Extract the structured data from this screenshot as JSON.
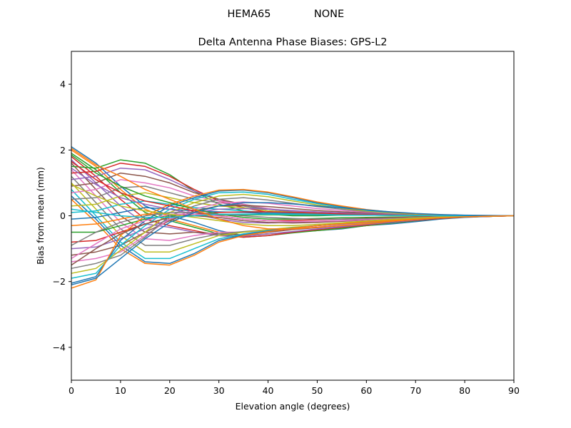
{
  "suptitle_left": "HEMA65",
  "suptitle_right": "NONE",
  "chart_data": {
    "type": "line",
    "title": "Delta Antenna Phase Biases: GPS-L2",
    "xlabel": "Elevation angle (degrees)",
    "ylabel": "Bias from mean (mm)",
    "xlim": [
      0,
      90
    ],
    "ylim": [
      -5,
      5
    ],
    "xticks": [
      0,
      10,
      20,
      30,
      40,
      50,
      60,
      70,
      80,
      90
    ],
    "yticks": [
      -4,
      -2,
      0,
      2,
      4
    ],
    "x": [
      0,
      5,
      10,
      15,
      20,
      25,
      30,
      35,
      40,
      45,
      50,
      55,
      60,
      65,
      70,
      75,
      80,
      85,
      90
    ],
    "grid": false,
    "legend": "none",
    "colors": [
      "#1f77b4",
      "#ff7f0e",
      "#2ca02c",
      "#d62728",
      "#9467bd",
      "#8c564b",
      "#e377c2",
      "#7f7f7f",
      "#bcbd22",
      "#17becf"
    ],
    "series": [
      {
        "values": [
          2.1,
          1.6,
          0.9,
          0.3,
          0.0,
          -0.2,
          -0.45,
          -0.6,
          -0.55,
          -0.5,
          -0.45,
          -0.4,
          -0.3,
          -0.25,
          -0.18,
          -0.1,
          -0.05,
          -0.02,
          0.0
        ]
      },
      {
        "values": [
          2.0,
          1.5,
          0.8,
          0.2,
          -0.1,
          -0.3,
          -0.5,
          -0.6,
          -0.55,
          -0.5,
          -0.45,
          -0.38,
          -0.3,
          -0.22,
          -0.15,
          -0.08,
          -0.04,
          -0.02,
          0.0
        ]
      },
      {
        "values": [
          1.9,
          1.4,
          0.7,
          0.1,
          -0.15,
          -0.35,
          -0.55,
          -0.65,
          -0.6,
          -0.52,
          -0.45,
          -0.38,
          -0.3,
          -0.22,
          -0.15,
          -0.08,
          -0.04,
          -0.02,
          0.0
        ]
      },
      {
        "values": [
          1.8,
          1.2,
          0.5,
          -0.1,
          -0.3,
          -0.45,
          -0.6,
          -0.65,
          -0.6,
          -0.5,
          -0.42,
          -0.35,
          -0.28,
          -0.2,
          -0.14,
          -0.08,
          -0.04,
          -0.02,
          0.0
        ]
      },
      {
        "values": [
          1.7,
          1.0,
          0.3,
          -0.25,
          -0.35,
          -0.5,
          -0.6,
          -0.62,
          -0.55,
          -0.48,
          -0.4,
          -0.33,
          -0.26,
          -0.2,
          -0.13,
          -0.07,
          -0.04,
          -0.02,
          0.0
        ]
      },
      {
        "values": [
          1.6,
          0.8,
          0.0,
          -0.5,
          -0.55,
          -0.5,
          -0.55,
          -0.58,
          -0.5,
          -0.42,
          -0.36,
          -0.3,
          -0.24,
          -0.18,
          -0.12,
          -0.07,
          -0.04,
          -0.02,
          0.0
        ]
      },
      {
        "values": [
          1.4,
          0.6,
          -0.2,
          -0.7,
          -0.75,
          -0.6,
          -0.5,
          -0.5,
          -0.45,
          -0.4,
          -0.34,
          -0.28,
          -0.22,
          -0.17,
          -0.11,
          -0.06,
          -0.03,
          -0.01,
          0.0
        ]
      },
      {
        "values": [
          1.2,
          0.4,
          -0.4,
          -0.9,
          -0.9,
          -0.7,
          -0.55,
          -0.48,
          -0.42,
          -0.36,
          -0.3,
          -0.25,
          -0.2,
          -0.15,
          -0.1,
          -0.06,
          -0.03,
          -0.01,
          0.0
        ]
      },
      {
        "values": [
          1.0,
          0.2,
          -0.6,
          -1.1,
          -1.1,
          -0.85,
          -0.6,
          -0.5,
          -0.42,
          -0.35,
          -0.3,
          -0.24,
          -0.19,
          -0.14,
          -0.1,
          -0.06,
          -0.03,
          -0.01,
          0.0
        ]
      },
      {
        "values": [
          0.8,
          0.0,
          -0.8,
          -1.3,
          -1.3,
          -1.0,
          -0.7,
          -0.55,
          -0.45,
          -0.37,
          -0.3,
          -0.24,
          -0.19,
          -0.14,
          -0.1,
          -0.06,
          -0.03,
          -0.01,
          0.0
        ]
      },
      {
        "values": [
          0.6,
          -0.1,
          -0.9,
          -1.4,
          -1.45,
          -1.15,
          -0.75,
          -0.58,
          -0.46,
          -0.38,
          -0.3,
          -0.24,
          -0.19,
          -0.14,
          -0.1,
          -0.06,
          -0.03,
          -0.01,
          0.0
        ]
      },
      {
        "values": [
          0.5,
          -0.2,
          -1.0,
          -1.45,
          -1.5,
          -1.2,
          -0.8,
          -0.6,
          -0.48,
          -0.38,
          -0.3,
          -0.24,
          -0.19,
          -0.14,
          -0.1,
          -0.06,
          -0.03,
          -0.01,
          0.0
        ]
      },
      {
        "values": [
          1.5,
          1.45,
          1.7,
          1.6,
          1.25,
          0.75,
          0.35,
          0.15,
          0.05,
          0.0,
          0.0,
          0.02,
          0.03,
          0.03,
          0.02,
          0.01,
          0.01,
          0.0,
          0.0
        ]
      },
      {
        "values": [
          1.3,
          1.35,
          1.6,
          1.5,
          1.2,
          0.8,
          0.45,
          0.25,
          0.1,
          0.05,
          0.03,
          0.03,
          0.03,
          0.03,
          0.02,
          0.01,
          0.01,
          0.0,
          0.0
        ]
      },
      {
        "values": [
          1.1,
          1.2,
          1.45,
          1.4,
          1.1,
          0.75,
          0.5,
          0.3,
          0.15,
          0.08,
          0.05,
          0.04,
          0.03,
          0.03,
          0.02,
          0.01,
          0.01,
          0.0,
          0.0
        ]
      },
      {
        "values": [
          0.9,
          1.0,
          1.3,
          1.2,
          1.0,
          0.7,
          0.5,
          0.35,
          0.2,
          0.12,
          0.08,
          0.05,
          0.04,
          0.03,
          0.02,
          0.01,
          0.01,
          0.0,
          0.0
        ]
      },
      {
        "values": [
          0.7,
          0.8,
          1.1,
          1.0,
          0.85,
          0.6,
          0.45,
          0.35,
          0.22,
          0.14,
          0.09,
          0.06,
          0.04,
          0.03,
          0.02,
          0.01,
          0.01,
          0.0,
          0.0
        ]
      },
      {
        "values": [
          0.5,
          0.55,
          0.85,
          0.9,
          0.7,
          0.5,
          0.4,
          0.3,
          0.2,
          0.12,
          0.08,
          0.05,
          0.04,
          0.03,
          0.02,
          0.01,
          0.01,
          0.0,
          0.0
        ]
      },
      {
        "values": [
          0.3,
          0.35,
          0.6,
          0.7,
          0.55,
          0.4,
          0.3,
          0.25,
          0.15,
          0.1,
          0.07,
          0.05,
          0.04,
          0.03,
          0.02,
          0.01,
          0.01,
          0.0,
          0.0
        ]
      },
      {
        "values": [
          0.1,
          0.15,
          0.35,
          0.45,
          0.35,
          0.25,
          0.2,
          0.15,
          0.1,
          0.07,
          0.05,
          0.04,
          0.03,
          0.02,
          0.02,
          0.01,
          0.01,
          0.0,
          0.0
        ]
      },
      {
        "values": [
          -0.1,
          -0.05,
          0.1,
          0.25,
          0.2,
          0.15,
          0.12,
          0.1,
          0.07,
          0.05,
          0.04,
          0.03,
          0.02,
          0.02,
          0.01,
          0.01,
          0.0,
          0.0,
          0.0
        ]
      },
      {
        "values": [
          -0.3,
          -0.25,
          -0.1,
          0.05,
          0.05,
          0.05,
          0.05,
          0.05,
          0.04,
          0.03,
          0.03,
          0.02,
          0.02,
          0.01,
          0.01,
          0.01,
          0.0,
          0.0,
          0.0
        ]
      },
      {
        "values": [
          -0.5,
          -0.5,
          -0.3,
          -0.1,
          0.0,
          0.0,
          0.02,
          0.03,
          0.03,
          0.03,
          0.03,
          0.02,
          0.02,
          0.01,
          0.01,
          0.01,
          0.0,
          0.0,
          0.0
        ]
      },
      {
        "values": [
          -0.8,
          -0.75,
          -0.5,
          -0.25,
          -0.05,
          0.05,
          0.1,
          0.12,
          0.12,
          0.1,
          0.08,
          0.06,
          0.05,
          0.04,
          0.03,
          0.02,
          0.01,
          0.0,
          0.0
        ]
      },
      {
        "values": [
          -1.0,
          -0.95,
          -0.7,
          -0.4,
          -0.1,
          0.1,
          0.2,
          0.22,
          0.2,
          0.16,
          0.12,
          0.09,
          0.07,
          0.05,
          0.03,
          0.02,
          0.01,
          0.0,
          0.0
        ]
      },
      {
        "values": [
          -1.2,
          -1.1,
          -0.9,
          -0.5,
          -0.15,
          0.15,
          0.3,
          0.32,
          0.28,
          0.22,
          0.16,
          0.12,
          0.09,
          0.06,
          0.04,
          0.02,
          0.01,
          0.0,
          0.0
        ]
      },
      {
        "values": [
          -1.4,
          -1.3,
          -1.1,
          -0.6,
          -0.1,
          0.2,
          0.38,
          0.42,
          0.38,
          0.3,
          0.22,
          0.16,
          0.11,
          0.07,
          0.05,
          0.03,
          0.01,
          0.0,
          0.0
        ]
      },
      {
        "values": [
          -1.6,
          -1.45,
          -1.2,
          -0.65,
          0.0,
          0.3,
          0.5,
          0.55,
          0.48,
          0.38,
          0.28,
          0.2,
          0.13,
          0.08,
          0.05,
          0.03,
          0.01,
          0.0,
          0.0
        ]
      },
      {
        "values": [
          -1.75,
          -1.6,
          -1.05,
          -0.5,
          0.1,
          0.4,
          0.6,
          0.65,
          0.58,
          0.45,
          0.33,
          0.23,
          0.15,
          0.09,
          0.05,
          0.03,
          0.01,
          0.0,
          0.0
        ]
      },
      {
        "values": [
          -1.9,
          -1.75,
          -0.9,
          -0.3,
          0.2,
          0.5,
          0.7,
          0.72,
          0.65,
          0.5,
          0.37,
          0.26,
          0.17,
          0.1,
          0.06,
          0.03,
          0.01,
          0.0,
          0.0
        ]
      },
      {
        "values": [
          -2.05,
          -1.85,
          -0.75,
          -0.15,
          0.3,
          0.55,
          0.75,
          0.78,
          0.7,
          0.55,
          0.4,
          0.28,
          0.18,
          0.11,
          0.06,
          0.03,
          0.01,
          0.0,
          0.0
        ]
      },
      {
        "values": [
          -2.2,
          -1.95,
          -0.6,
          0.0,
          0.35,
          0.6,
          0.78,
          0.8,
          0.72,
          0.58,
          0.42,
          0.3,
          0.19,
          0.11,
          0.06,
          0.03,
          0.01,
          0.0,
          0.0
        ]
      },
      {
        "values": [
          1.85,
          1.3,
          0.9,
          0.6,
          0.4,
          0.2,
          0.05,
          -0.05,
          -0.1,
          -0.1,
          -0.08,
          -0.06,
          -0.05,
          -0.04,
          -0.03,
          -0.02,
          -0.01,
          0.0,
          0.0
        ]
      },
      {
        "values": [
          1.65,
          1.1,
          0.7,
          0.45,
          0.3,
          0.15,
          0.0,
          -0.1,
          -0.15,
          -0.14,
          -0.12,
          -0.1,
          -0.08,
          -0.06,
          -0.04,
          -0.02,
          -0.01,
          0.0,
          0.0
        ]
      },
      {
        "values": [
          1.45,
          0.95,
          0.55,
          0.35,
          0.2,
          0.05,
          -0.1,
          -0.2,
          -0.22,
          -0.2,
          -0.17,
          -0.14,
          -0.11,
          -0.08,
          -0.05,
          -0.03,
          -0.01,
          0.0,
          0.0
        ]
      },
      {
        "values": [
          -1.5,
          -1.0,
          -0.55,
          -0.25,
          -0.05,
          0.0,
          -0.05,
          -0.15,
          -0.2,
          -0.22,
          -0.2,
          -0.17,
          -0.13,
          -0.09,
          -0.06,
          -0.03,
          -0.01,
          0.0,
          0.0
        ]
      },
      {
        "values": [
          -1.3,
          -0.85,
          -0.4,
          -0.15,
          0.05,
          0.05,
          0.0,
          -0.1,
          -0.15,
          -0.18,
          -0.17,
          -0.15,
          -0.12,
          -0.08,
          -0.05,
          -0.03,
          -0.01,
          0.0,
          0.0
        ]
      },
      {
        "values": [
          -0.9,
          -0.5,
          -0.2,
          0.0,
          0.1,
          0.1,
          0.05,
          0.0,
          -0.05,
          -0.08,
          -0.1,
          -0.1,
          -0.09,
          -0.07,
          -0.05,
          -0.03,
          -0.01,
          0.0,
          0.0
        ]
      },
      {
        "values": [
          0.95,
          0.6,
          0.3,
          0.15,
          0.05,
          -0.05,
          -0.15,
          -0.25,
          -0.3,
          -0.3,
          -0.26,
          -0.21,
          -0.16,
          -0.11,
          -0.07,
          -0.04,
          -0.02,
          -0.01,
          0.0
        ]
      },
      {
        "values": [
          0.2,
          0.1,
          0.0,
          -0.05,
          -0.05,
          0.0,
          0.05,
          0.05,
          0.05,
          0.04,
          0.03,
          0.02,
          0.02,
          0.01,
          0.01,
          0.0,
          0.0,
          0.0,
          0.0
        ]
      },
      {
        "values": [
          -2.1,
          -1.9,
          -1.3,
          -0.7,
          -0.2,
          0.1,
          0.3,
          0.4,
          0.4,
          0.36,
          0.3,
          0.24,
          0.18,
          0.12,
          0.07,
          0.04,
          0.02,
          0.01,
          0.0
        ]
      },
      {
        "values": [
          2.05,
          1.55,
          1.2,
          0.8,
          0.5,
          0.2,
          -0.1,
          -0.3,
          -0.4,
          -0.4,
          -0.35,
          -0.3,
          -0.24,
          -0.17,
          -0.11,
          -0.06,
          -0.03,
          -0.01,
          0.0
        ]
      }
    ]
  }
}
